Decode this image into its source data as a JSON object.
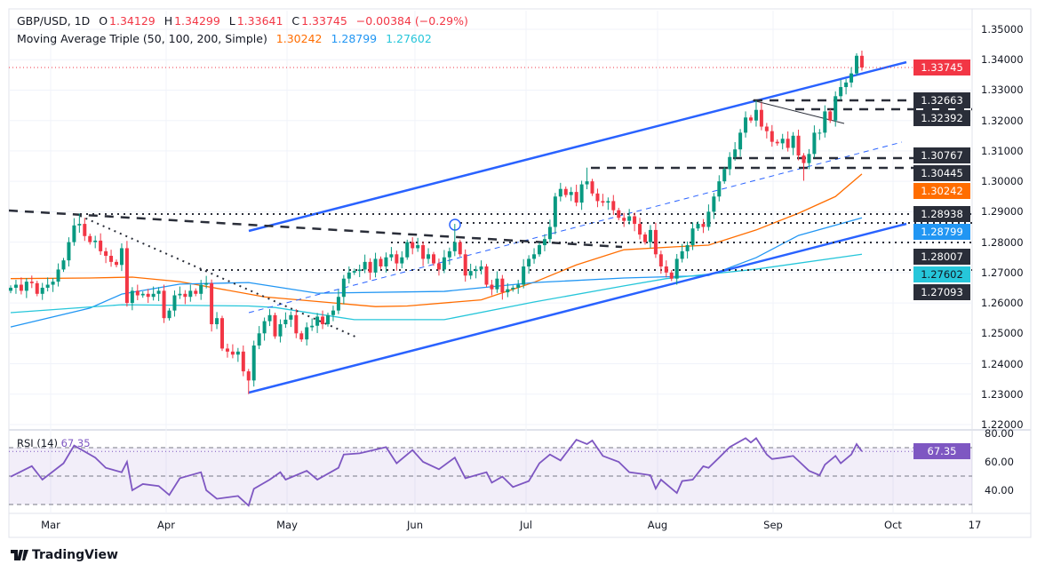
{
  "header": {
    "symbol": "GBP/USD, 1D",
    "o_label": "O",
    "o_value": "1.34129",
    "h_label": "H",
    "h_value": "1.34299",
    "l_label": "L",
    "l_value": "1.33641",
    "c_label": "C",
    "c_value": "1.33745",
    "change": "−0.00384 (−0.29%)",
    "ma_title": "Moving Average Triple (50, 100, 200, Simple)",
    "ma50": "1.30242",
    "ma100": "1.28799",
    "ma200": "1.27602"
  },
  "rsi_header": {
    "label": "RSI (14)",
    "value": "67.35"
  },
  "price_badges": [
    {
      "value": "1.33745",
      "color": "#f23645",
      "kind": "last-price"
    },
    {
      "value": "1.32663",
      "color": "#2a2e39",
      "kind": "level"
    },
    {
      "value": "1.32392",
      "color": "#2a2e39",
      "kind": "level"
    },
    {
      "value": "1.30767",
      "color": "#2a2e39",
      "kind": "level"
    },
    {
      "value": "1.30445",
      "color": "#2a2e39",
      "kind": "level"
    },
    {
      "value": "1.30242",
      "color": "#ff6d00",
      "kind": "sma50"
    },
    {
      "value": "1.28938",
      "color": "#2a2e39",
      "kind": "level"
    },
    {
      "value": "1.28799",
      "color": "#2196f3",
      "kind": "sma100"
    },
    {
      "value": "1.28007",
      "color": "#2a2e39",
      "kind": "level"
    },
    {
      "value": "1.27602",
      "color": "#26c6da",
      "kind": "sma200"
    },
    {
      "value": "1.27093",
      "color": "#2a2e39",
      "kind": "level"
    }
  ],
  "rsi_badge": {
    "value": "67.35",
    "color": "#7e57c2"
  },
  "footer": {
    "brand": "TradingView"
  },
  "colors": {
    "up": "#089981",
    "down": "#f23645",
    "channel": "#2962ff",
    "rsi": "#7e57c2"
  },
  "chart_data": {
    "type": "candlestick",
    "title": "GBP/USD, 1D",
    "y_ticks": [
      "1.35000",
      "1.34000",
      "1.33000",
      "1.32000",
      "1.31000",
      "1.30000",
      "1.29000",
      "1.28000",
      "1.27000",
      "1.26000",
      "1.25000",
      "1.24000",
      "1.23000",
      "1.22000"
    ],
    "y_range": [
      1.22,
      1.35
    ],
    "x_ticks": [
      "Mar",
      "Apr",
      "May",
      "Jun",
      "Jul",
      "Aug",
      "Sep",
      "Oct",
      "17"
    ],
    "first_open": 1.264,
    "closes": [
      1.265,
      1.266,
      1.264,
      1.267,
      1.2665,
      1.263,
      1.265,
      1.266,
      1.267,
      1.271,
      1.274,
      1.28,
      1.2855,
      1.286,
      1.282,
      1.28,
      1.2805,
      1.277,
      1.2755,
      1.2735,
      1.2725,
      1.278,
      1.26,
      1.264,
      1.2625,
      1.263,
      1.262,
      1.263,
      1.264,
      1.255,
      1.2575,
      1.2625,
      1.263,
      1.262,
      1.264,
      1.263,
      1.266,
      1.2665,
      1.253,
      1.255,
      1.245,
      1.244,
      1.243,
      1.244,
      1.2375,
      1.2345,
      1.246,
      1.25,
      1.254,
      1.256,
      1.249,
      1.253,
      1.2545,
      1.256,
      1.25,
      1.248,
      1.252,
      1.2525,
      1.2555,
      1.253,
      1.256,
      1.2575,
      1.262,
      1.268,
      1.27,
      1.2705,
      1.271,
      1.2735,
      1.27,
      1.2745,
      1.272,
      1.275,
      1.276,
      1.273,
      1.275,
      1.28,
      1.278,
      1.279,
      1.2745,
      1.276,
      1.273,
      1.271,
      1.275,
      1.277,
      1.28,
      1.276,
      1.269,
      1.2705,
      1.271,
      1.272,
      1.266,
      1.2645,
      1.268,
      1.2635,
      1.2645,
      1.265,
      1.266,
      1.272,
      1.2745,
      1.276,
      1.279,
      1.281,
      1.285,
      1.295,
      1.2975,
      1.2955,
      1.2965,
      1.293,
      1.299,
      1.3,
      1.296,
      1.2935,
      1.293,
      1.2935,
      1.2905,
      1.288,
      1.287,
      1.2885,
      1.286,
      1.2825,
      1.28,
      1.284,
      1.276,
      1.272,
      1.27,
      1.268,
      1.2745,
      1.277,
      1.279,
      1.2845,
      1.286,
      1.285,
      1.29,
      1.295,
      1.3,
      1.304,
      1.308,
      1.3105,
      1.316,
      1.321,
      1.32,
      1.3235,
      1.318,
      1.3165,
      1.313,
      1.3125,
      1.314,
      1.311,
      1.315,
      1.3085,
      1.306,
      1.309,
      1.316,
      1.316,
      1.323,
      1.32,
      1.328,
      1.331,
      1.3325,
      1.3355,
      1.3413,
      1.33745
    ],
    "extremes": [
      {
        "bar": 13,
        "high": 1.2894
      },
      {
        "bar": 45,
        "low": 1.23
      },
      {
        "bar": 84,
        "high": 1.286
      },
      {
        "bar": 109,
        "high": 1.3045
      },
      {
        "bar": 126,
        "low": 1.266
      },
      {
        "bar": 141,
        "high": 1.32663
      },
      {
        "bar": 150,
        "low": 1.3002
      },
      {
        "bar": 161,
        "open": 1.34129,
        "high": 1.34299,
        "low": 1.33641
      }
    ],
    "moving_averages": [
      {
        "name": "SMA 50",
        "color": "#ff6d00",
        "last": 1.30242,
        "points": [
          [
            0,
            1.268
          ],
          [
            15,
            1.2682
          ],
          [
            23,
            1.2685
          ],
          [
            32,
            1.267
          ],
          [
            48,
            1.262
          ],
          [
            69,
            1.2588
          ],
          [
            75,
            1.259
          ],
          [
            89,
            1.261
          ],
          [
            99,
            1.2668
          ],
          [
            107,
            1.2725
          ],
          [
            116,
            1.2775
          ],
          [
            126,
            1.2785
          ],
          [
            132,
            1.279
          ],
          [
            141,
            1.284
          ],
          [
            149,
            1.2895
          ],
          [
            156,
            1.295
          ],
          [
            161,
            1.30242
          ]
        ]
      },
      {
        "name": "SMA 100",
        "color": "#2196f3",
        "last": 1.28799,
        "points": [
          [
            0,
            1.2521
          ],
          [
            15,
            1.2583
          ],
          [
            21,
            1.2629
          ],
          [
            32,
            1.2662
          ],
          [
            45,
            1.2667
          ],
          [
            58,
            1.2632
          ],
          [
            82,
            1.2638
          ],
          [
            99,
            1.2667
          ],
          [
            116,
            1.2682
          ],
          [
            132,
            1.269
          ],
          [
            141,
            1.2749
          ],
          [
            149,
            1.2822
          ],
          [
            161,
            1.28799
          ]
        ]
      },
      {
        "name": "SMA 200",
        "color": "#26c6da",
        "last": 1.27602,
        "points": [
          [
            0,
            1.2568
          ],
          [
            21,
            1.2594
          ],
          [
            45,
            1.259
          ],
          [
            50,
            1.2585
          ],
          [
            65,
            1.2545
          ],
          [
            82,
            1.2545
          ],
          [
            99,
            1.2603
          ],
          [
            116,
            1.2656
          ],
          [
            124,
            1.268
          ],
          [
            141,
            1.2711
          ],
          [
            161,
            1.27602
          ]
        ]
      }
    ],
    "horizontal_levels": [
      1.32663,
      1.32392,
      1.30767,
      1.30445,
      1.28938,
      1.2862,
      1.28007,
      1.27093
    ],
    "rsi": {
      "period": 14,
      "last": 67.35,
      "y_ticks": [
        "80.00",
        "60.00",
        "40.00"
      ],
      "band": [
        30,
        70
      ],
      "mid": 50,
      "points": [
        [
          0,
          49.6
        ],
        [
          4,
          57
        ],
        [
          6,
          47.5
        ],
        [
          10,
          59
        ],
        [
          12,
          71.5
        ],
        [
          16,
          63
        ],
        [
          18,
          55.8
        ],
        [
          21,
          52.7
        ],
        [
          22,
          60
        ],
        [
          23,
          40
        ],
        [
          25,
          44.4
        ],
        [
          28,
          43
        ],
        [
          30,
          36.7
        ],
        [
          32,
          48.5
        ],
        [
          36,
          52.7
        ],
        [
          37,
          40
        ],
        [
          39,
          34
        ],
        [
          43,
          36
        ],
        [
          45,
          29.2
        ],
        [
          46,
          41
        ],
        [
          49,
          47.5
        ],
        [
          51,
          52.7
        ],
        [
          52,
          47.5
        ],
        [
          56,
          53.7
        ],
        [
          58,
          47.5
        ],
        [
          62,
          55.8
        ],
        [
          63,
          65.2
        ],
        [
          66,
          66
        ],
        [
          71,
          70.4
        ],
        [
          73,
          59
        ],
        [
          76,
          68.3
        ],
        [
          78,
          60
        ],
        [
          81,
          54.8
        ],
        [
          84,
          63
        ],
        [
          86,
          48.5
        ],
        [
          90,
          52.7
        ],
        [
          91,
          45.4
        ],
        [
          93,
          49.6
        ],
        [
          95,
          42.3
        ],
        [
          98,
          46.5
        ],
        [
          100,
          59
        ],
        [
          102,
          65.2
        ],
        [
          104,
          61
        ],
        [
          107,
          75.6
        ],
        [
          109,
          72.5
        ],
        [
          110,
          75
        ],
        [
          112,
          64.2
        ],
        [
          115,
          60
        ],
        [
          117,
          52.7
        ],
        [
          119,
          51.7
        ],
        [
          121,
          50.6
        ],
        [
          122,
          41.2
        ],
        [
          123,
          47.5
        ],
        [
          126,
          38.1
        ],
        [
          127,
          46.5
        ],
        [
          129,
          47.5
        ],
        [
          131,
          56.9
        ],
        [
          132,
          55.8
        ],
        [
          134,
          63
        ],
        [
          136,
          70.4
        ],
        [
          139,
          76.7
        ],
        [
          140,
          73.6
        ],
        [
          141,
          76.7
        ],
        [
          143,
          65.2
        ],
        [
          144,
          62
        ],
        [
          146,
          63
        ],
        [
          148,
          64.2
        ],
        [
          151,
          53.7
        ],
        [
          153,
          50.6
        ],
        [
          154,
          58
        ],
        [
          156,
          64.2
        ],
        [
          157,
          59
        ],
        [
          159,
          65.2
        ],
        [
          160,
          72.5
        ],
        [
          161,
          67.35
        ]
      ]
    }
  }
}
